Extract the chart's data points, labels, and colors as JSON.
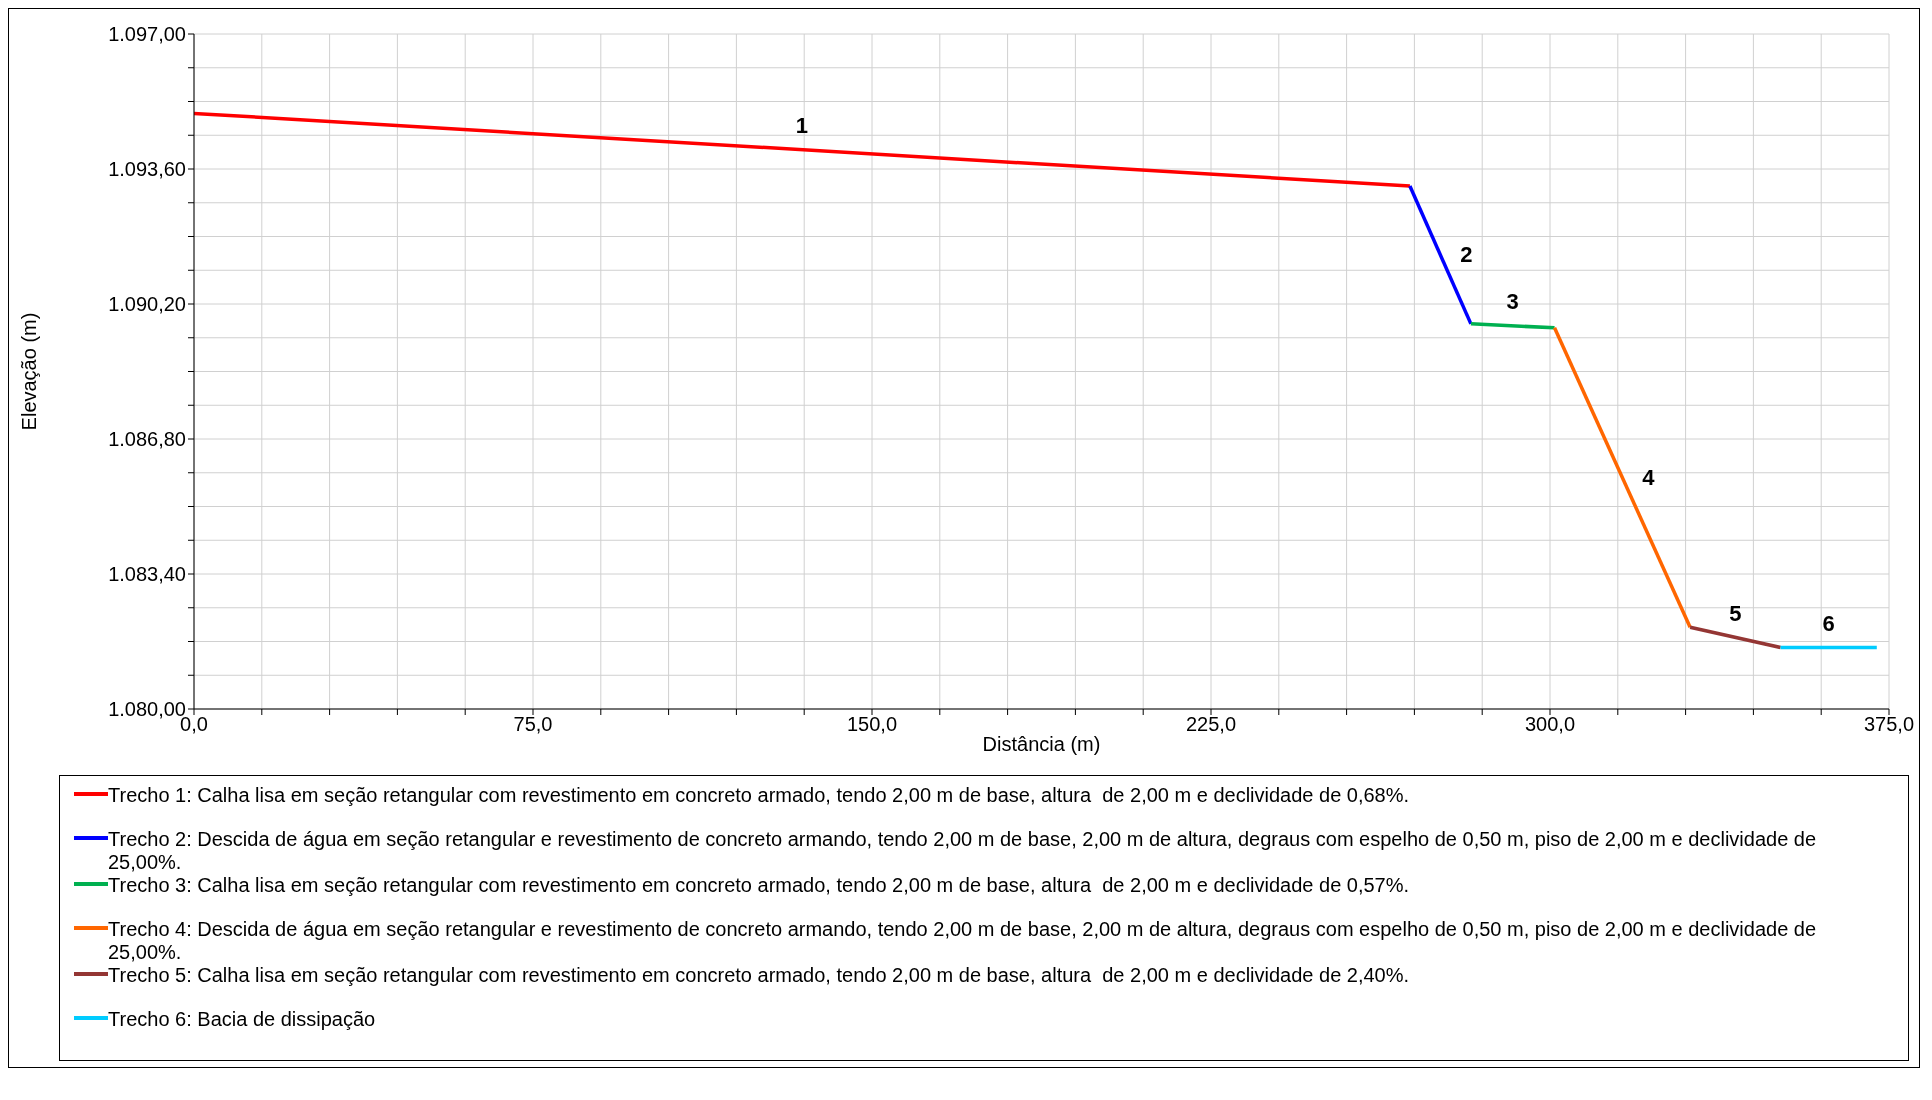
{
  "chart_data": {
    "type": "line",
    "xlabel": "Distância (m)",
    "ylabel": "Elevação (m)",
    "xlim": [
      0,
      375
    ],
    "xticks": [
      {
        "value": 0,
        "label": "0,0"
      },
      {
        "value": 15,
        "label": null
      },
      {
        "value": 30,
        "label": null
      },
      {
        "value": 45,
        "label": null
      },
      {
        "value": 60,
        "label": null
      },
      {
        "value": 75,
        "label": "75,0"
      },
      {
        "value": 90,
        "label": null
      },
      {
        "value": 105,
        "label": null
      },
      {
        "value": 120,
        "label": null
      },
      {
        "value": 135,
        "label": null
      },
      {
        "value": 150,
        "label": "150,0"
      },
      {
        "value": 165,
        "label": null
      },
      {
        "value": 180,
        "label": null
      },
      {
        "value": 195,
        "label": null
      },
      {
        "value": 210,
        "label": null
      },
      {
        "value": 225,
        "label": "225,0"
      },
      {
        "value": 240,
        "label": null
      },
      {
        "value": 255,
        "label": null
      },
      {
        "value": 270,
        "label": null
      },
      {
        "value": 285,
        "label": null
      },
      {
        "value": 300,
        "label": "300,0"
      },
      {
        "value": 315,
        "label": null
      },
      {
        "value": 330,
        "label": null
      },
      {
        "value": 345,
        "label": null
      },
      {
        "value": 360,
        "label": null
      },
      {
        "value": 375,
        "label": "375,0"
      }
    ],
    "ylim": [
      1080,
      1097
    ],
    "yticks": [
      {
        "value": 1080,
        "label": "1.080,00"
      },
      {
        "value": 1080.85,
        "label": null
      },
      {
        "value": 1081.7,
        "label": null
      },
      {
        "value": 1082.55,
        "label": null
      },
      {
        "value": 1083.4,
        "label": "1.083,40"
      },
      {
        "value": 1084.25,
        "label": null
      },
      {
        "value": 1085.1,
        "label": null
      },
      {
        "value": 1085.95,
        "label": null
      },
      {
        "value": 1086.8,
        "label": "1.086,80"
      },
      {
        "value": 1087.65,
        "label": null
      },
      {
        "value": 1088.5,
        "label": null
      },
      {
        "value": 1089.35,
        "label": null
      },
      {
        "value": 1090.2,
        "label": "1.090,20"
      },
      {
        "value": 1091.05,
        "label": null
      },
      {
        "value": 1091.9,
        "label": null
      },
      {
        "value": 1092.75,
        "label": null
      },
      {
        "value": 1093.6,
        "label": "1.093,60"
      },
      {
        "value": 1094.45,
        "label": null
      },
      {
        "value": 1095.3,
        "label": null
      },
      {
        "value": 1096.15,
        "label": null
      },
      {
        "value": 1097,
        "label": "1.097,00"
      }
    ],
    "grid": true,
    "legend": "bottom",
    "marker": "none",
    "line_style": "solid",
    "series": [
      {
        "name": "Trecho 1: Calha lisa em seção retangular com revestimento em concreto armado, tendo 2,00 m de base, altura  de 2,00 m e declividade de 0,68%.",
        "color": "#ff0000",
        "x": [
          0,
          269
        ],
        "values": [
          1095.0,
          1093.17
        ]
      },
      {
        "name": "Trecho 2: Descida de água em seção retangular e revestimento de concreto armando, tendo 2,00 m de base, 2,00 m de altura, degraus com espelho de 0,50 m, piso de 2,00 m e declividade de 25,00%.",
        "color": "#0000ff",
        "x": [
          269,
          282.5
        ],
        "values": [
          1093.17,
          1089.7
        ]
      },
      {
        "name": "Trecho 3: Calha lisa em seção retangular com revestimento em concreto armado, tendo 2,00 m de base, altura  de 2,00 m e declividade de 0,57%.",
        "color": "#00b050",
        "x": [
          282.5,
          301
        ],
        "values": [
          1089.7,
          1089.6
        ]
      },
      {
        "name": "Trecho 4: Descida de água em seção retangular e revestimento de concreto armando, tendo 2,00 m de base, 2,00 m de altura, degraus com espelho de 0,50 m, piso de 2,00 m e declividade de 25,00%.",
        "color": "#ff6600",
        "x": [
          301,
          331
        ],
        "values": [
          1089.6,
          1082.06
        ]
      },
      {
        "name": "Trecho 5: Calha lisa em seção retangular com revestimento em concreto armado, tendo 2,00 m de base, altura  de 2,00 m e declividade de 2,40%.",
        "color": "#943634",
        "x": [
          331,
          351
        ],
        "values": [
          1082.06,
          1081.55
        ]
      },
      {
        "name": "Trecho 6: Bacia de dissipação",
        "color": "#00ccff",
        "x": [
          351,
          372.3
        ],
        "values": [
          1081.55,
          1081.55
        ]
      }
    ],
    "annotations": [
      "1",
      "2",
      "3",
      "4",
      "5",
      "6"
    ]
  }
}
